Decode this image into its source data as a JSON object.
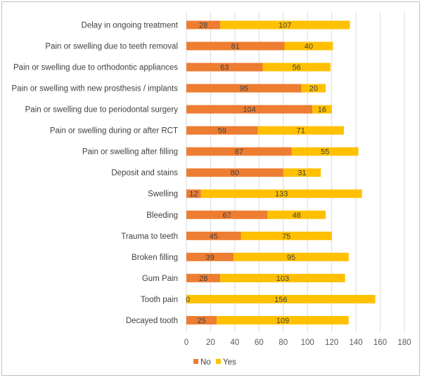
{
  "chart_data": {
    "type": "bar",
    "orientation": "horizontal",
    "stacked": true,
    "title": "",
    "xlabel": "",
    "ylabel": "",
    "xlim": [
      0,
      180
    ],
    "xticks": [
      0,
      20,
      40,
      60,
      80,
      100,
      120,
      140,
      160,
      180
    ],
    "grid": true,
    "legend_position": "bottom",
    "categories": [
      "Delay in ongoing treatment",
      "Pain or swelling due to teeth removal",
      "Pain or swelling due to orthodontic appliances",
      "Pain or swelling with new prosthesis / implants",
      "Pain or swelling due to periodontal surgery",
      "Pain or swelling during or after RCT",
      "Pain or swelling after filling",
      "Deposit and stains",
      "Swelling",
      "Bleeding",
      "Trauma to teeth",
      "Broken filling",
      "Gum Pain",
      "Tooth pain",
      "Decayed tooth"
    ],
    "series": [
      {
        "name": "No",
        "color": "#ED7D31",
        "values": [
          28,
          81,
          63,
          95,
          104,
          59,
          87,
          80,
          12,
          67,
          45,
          39,
          28,
          0,
          25
        ]
      },
      {
        "name": "Yes",
        "color": "#FFC000",
        "values": [
          107,
          40,
          56,
          20,
          16,
          71,
          55,
          31,
          133,
          48,
          75,
          95,
          103,
          156,
          109
        ]
      }
    ]
  }
}
